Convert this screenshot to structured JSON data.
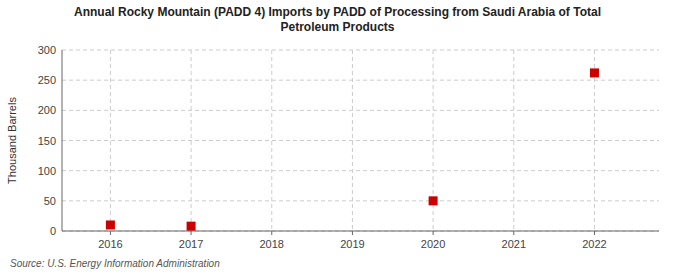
{
  "chart_data": {
    "type": "scatter",
    "title": "Annual Rocky Mountain (PADD 4) Imports by PADD of Processing from Saudi Arabia of Total\nPetroleum Products",
    "ylabel": "Thousand Barrels",
    "source": "Source: U.S. Energy Information Administration",
    "x": [
      2016,
      2017,
      2020,
      2022
    ],
    "values": [
      10,
      8,
      50,
      262
    ],
    "xlim": [
      2015.4,
      2022.8
    ],
    "ylim": [
      0,
      300
    ],
    "xticks": [
      2016,
      2017,
      2018,
      2019,
      2020,
      2021,
      2022
    ],
    "yticks": [
      0,
      50,
      100,
      150,
      200,
      250,
      300
    ],
    "color": "#cc0000",
    "marker": "square",
    "grid": true
  }
}
